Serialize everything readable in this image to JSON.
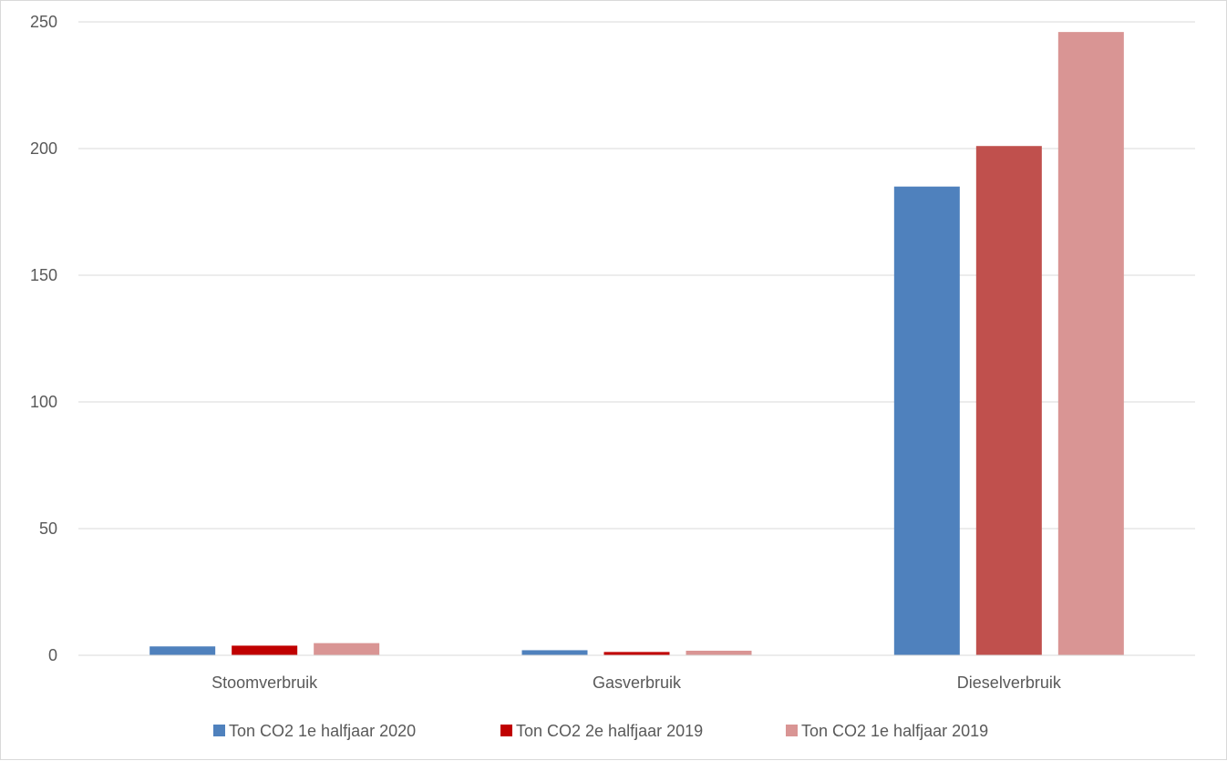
{
  "chart_data": {
    "type": "bar",
    "title": "",
    "xlabel": "",
    "ylabel": "",
    "categories": [
      "Stoomverbruik",
      "Gasverbruik",
      "Dieselverbruik"
    ],
    "series": [
      {
        "name": "Ton CO2 1e halfjaar 2020",
        "color": "#4f81bd",
        "values": [
          3.5,
          2,
          185
        ]
      },
      {
        "name": "Ton CO2 2e halfjaar 2019",
        "color": "#c00000",
        "values": [
          3.8,
          1.3,
          201
        ]
      },
      {
        "name": "Ton CO2 1e halfjaar 2019",
        "color": "#d99594",
        "values": [
          4.8,
          1.8,
          246
        ]
      }
    ],
    "dieselverbruik_colors": [
      "#4f81bd",
      "#c0504d",
      "#d99594"
    ],
    "ylim": [
      0,
      250
    ],
    "yticks": [
      0,
      50,
      100,
      150,
      200,
      250
    ],
    "grid": true,
    "gridline_color": "#d9d9d9",
    "legend_position": "bottom"
  }
}
